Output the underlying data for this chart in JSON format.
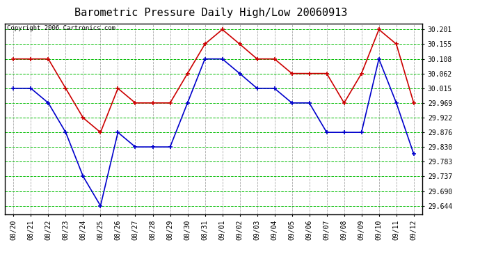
{
  "title": "Barometric Pressure Daily High/Low 20060913",
  "copyright": "Copyright 2006 Cartronics.com",
  "dates": [
    "08/20",
    "08/21",
    "08/22",
    "08/23",
    "08/24",
    "08/25",
    "08/26",
    "08/27",
    "08/28",
    "08/29",
    "08/30",
    "08/31",
    "09/01",
    "09/02",
    "09/03",
    "09/04",
    "09/05",
    "09/06",
    "09/07",
    "09/08",
    "09/09",
    "09/10",
    "09/11",
    "09/12"
  ],
  "high_values": [
    30.108,
    30.108,
    30.108,
    30.015,
    29.922,
    29.876,
    30.015,
    29.969,
    29.969,
    29.969,
    30.062,
    30.155,
    30.201,
    30.155,
    30.108,
    30.108,
    30.062,
    30.062,
    30.062,
    29.969,
    30.062,
    30.201,
    30.155,
    29.969
  ],
  "low_values": [
    30.015,
    30.015,
    29.969,
    29.876,
    29.737,
    29.644,
    29.876,
    29.83,
    29.83,
    29.83,
    29.969,
    30.108,
    30.108,
    30.062,
    30.015,
    30.015,
    29.969,
    29.969,
    29.876,
    29.876,
    29.876,
    30.108,
    29.969,
    29.808
  ],
  "high_color": "#cc0000",
  "low_color": "#0000cc",
  "bg_color": "#ffffff",
  "hgrid_color": "#00bb00",
  "vgrid_color": "#aaaaaa",
  "yticks": [
    29.644,
    29.69,
    29.737,
    29.783,
    29.83,
    29.876,
    29.922,
    29.969,
    30.015,
    30.062,
    30.108,
    30.155,
    30.201
  ],
  "ylim_min": 29.618,
  "ylim_max": 30.22,
  "title_fontsize": 11,
  "tick_fontsize": 7,
  "copyright_fontsize": 6.5
}
